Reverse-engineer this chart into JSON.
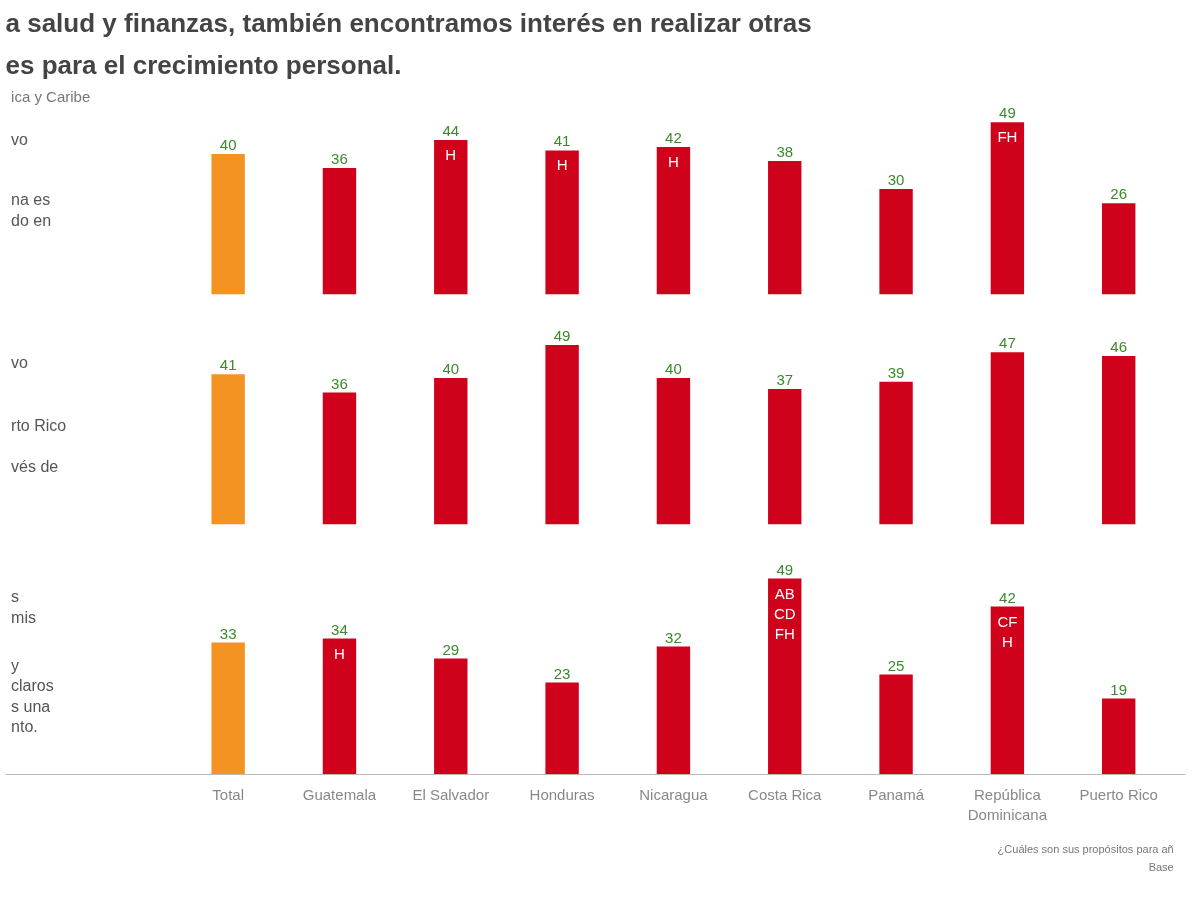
{
  "chart_data": [
    {
      "type": "bar",
      "title": "a salud y finanzas, también encontramos interés en realizar otras",
      "subtitle": "es para el crecimiento personal.",
      "categories": [
        "Total",
        "Guatemala",
        "El Salvador",
        "Honduras",
        "Nicaragua",
        "Costa Rica",
        "Panamá",
        "República Dominicana",
        "Puerto Rico"
      ],
      "values": [
        40,
        36,
        44,
        41,
        42,
        38,
        30,
        49,
        26
      ],
      "colors": [
        "#f39322",
        "#d0021b",
        "#d0021b",
        "#d0021b",
        "#d0021b",
        "#d0021b",
        "#d0021b",
        "#d0021b",
        "#d0021b"
      ],
      "data_labels": true,
      "tick_labels": false,
      "grid": false,
      "annotations": [
        "ica y Caribe",
        "vo",
        "na es\ndo en",
        {
          "text": "H",
          "x": "El Salvador",
          "y": 44
        },
        {
          "text": "H",
          "x": "Honduras",
          "y": 41
        },
        {
          "text": "H",
          "x": "Nicaragua",
          "y": 42
        },
        {
          "text": "FH",
          "x": "República Dominicana",
          "y": 49
        }
      ]
    },
    {
      "type": "bar",
      "categories": [
        "Total",
        "Guatemala",
        "El Salvador",
        "Honduras",
        "Nicaragua",
        "Costa Rica",
        "Panamá",
        "República Dominicana",
        "Puerto Rico"
      ],
      "values": [
        41,
        36,
        40,
        49,
        40,
        37,
        39,
        47,
        46
      ],
      "colors": [
        "#f39322",
        "#d0021b",
        "#d0021b",
        "#d0021b",
        "#d0021b",
        "#d0021b",
        "#d0021b",
        "#d0021b",
        "#d0021b"
      ],
      "data_labels": true,
      "tick_labels": false,
      "grid": false,
      "annotations": [
        "vo",
        "rto Rico\n\nvés de"
      ]
    },
    {
      "type": "bar",
      "categories": [
        "Total",
        "Guatemala",
        "El Salvador",
        "Honduras",
        "Nicaragua",
        "Costa Rica",
        "Panamá",
        "República Dominicana",
        "Puerto Rico"
      ],
      "values": [
        33,
        34,
        29,
        23,
        32,
        49,
        25,
        42,
        19
      ],
      "colors": [
        "#f39322",
        "#d0021b",
        "#d0021b",
        "#d0021b",
        "#d0021b",
        "#d0021b",
        "#d0021b",
        "#d0021b",
        "#d0021b"
      ],
      "data_labels": true,
      "tick_labels": "x",
      "grid": false,
      "annotations": [
        "s\nmis",
        "y\nclaros\ns una\nnto.",
        {
          "text": "H",
          "x": "Guatemala",
          "y": 34
        },
        {
          "text": "AB\nCD\nFH",
          "x": "Costa Rica",
          "y": 49
        },
        {
          "text": "CF\nH",
          "x": "República Dominicana",
          "y": 42
        }
      ]
    },
    {
      "type": "other",
      "annotations": [
        "¿Cuáles son sus propósitos para añ",
        "Base"
      ]
    }
  ]
}
